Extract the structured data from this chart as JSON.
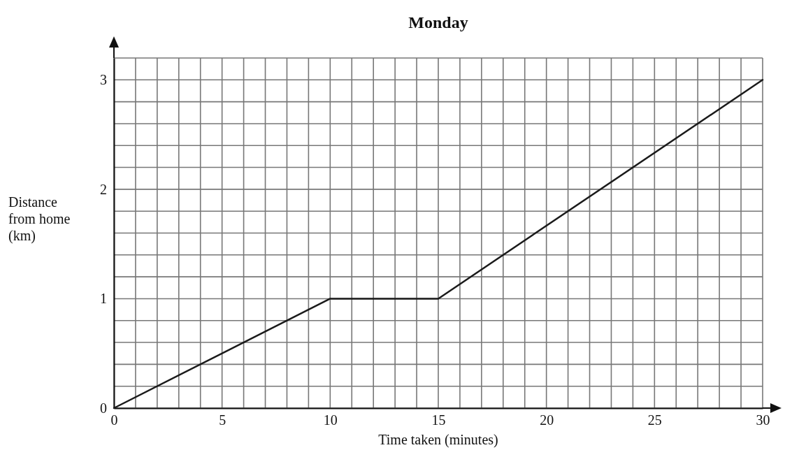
{
  "chart_data": {
    "type": "line",
    "title": "Monday",
    "xlabel": "Time taken (minutes)",
    "ylabel": "Distance from home (km)",
    "x": [
      0,
      10,
      15,
      30
    ],
    "values": [
      0,
      1,
      1,
      3
    ],
    "color": "#1a1a1a",
    "marker": "none",
    "line_style": "solid",
    "grid": true,
    "xlim": [
      0,
      30
    ],
    "ylim": [
      0,
      3.2
    ],
    "xticks": [
      0,
      {
        "value": 1,
        "label": null
      },
      {
        "value": 2,
        "label": null
      },
      {
        "value": 3,
        "label": null
      },
      {
        "value": 4,
        "label": null
      },
      5,
      {
        "value": 6,
        "label": null
      },
      {
        "value": 7,
        "label": null
      },
      {
        "value": 8,
        "label": null
      },
      {
        "value": 9,
        "label": null
      },
      10,
      {
        "value": 11,
        "label": null
      },
      {
        "value": 12,
        "label": null
      },
      {
        "value": 13,
        "label": null
      },
      {
        "value": 14,
        "label": null
      },
      15,
      {
        "value": 16,
        "label": null
      },
      {
        "value": 17,
        "label": null
      },
      {
        "value": 18,
        "label": null
      },
      {
        "value": 19,
        "label": null
      },
      20,
      {
        "value": 21,
        "label": null
      },
      {
        "value": 22,
        "label": null
      },
      {
        "value": 23,
        "label": null
      },
      {
        "value": 24,
        "label": null
      },
      25,
      {
        "value": 26,
        "label": null
      },
      {
        "value": 27,
        "label": null
      },
      {
        "value": 28,
        "label": null
      },
      {
        "value": 29,
        "label": null
      },
      30
    ],
    "yticks": [
      0,
      {
        "value": 0.2,
        "label": null
      },
      {
        "value": 0.4,
        "label": null
      },
      {
        "value": 0.6,
        "label": null
      },
      {
        "value": 0.8,
        "label": null
      },
      1,
      {
        "value": 1.2,
        "label": null
      },
      {
        "value": 1.4,
        "label": null
      },
      {
        "value": 1.6,
        "label": null
      },
      {
        "value": 1.8,
        "label": null
      },
      2,
      {
        "value": 2.2,
        "label": null
      },
      {
        "value": 2.4,
        "label": null
      },
      {
        "value": 2.6,
        "label": null
      },
      {
        "value": 2.8,
        "label": null
      },
      3,
      {
        "value": 3.2,
        "label": null
      }
    ]
  }
}
